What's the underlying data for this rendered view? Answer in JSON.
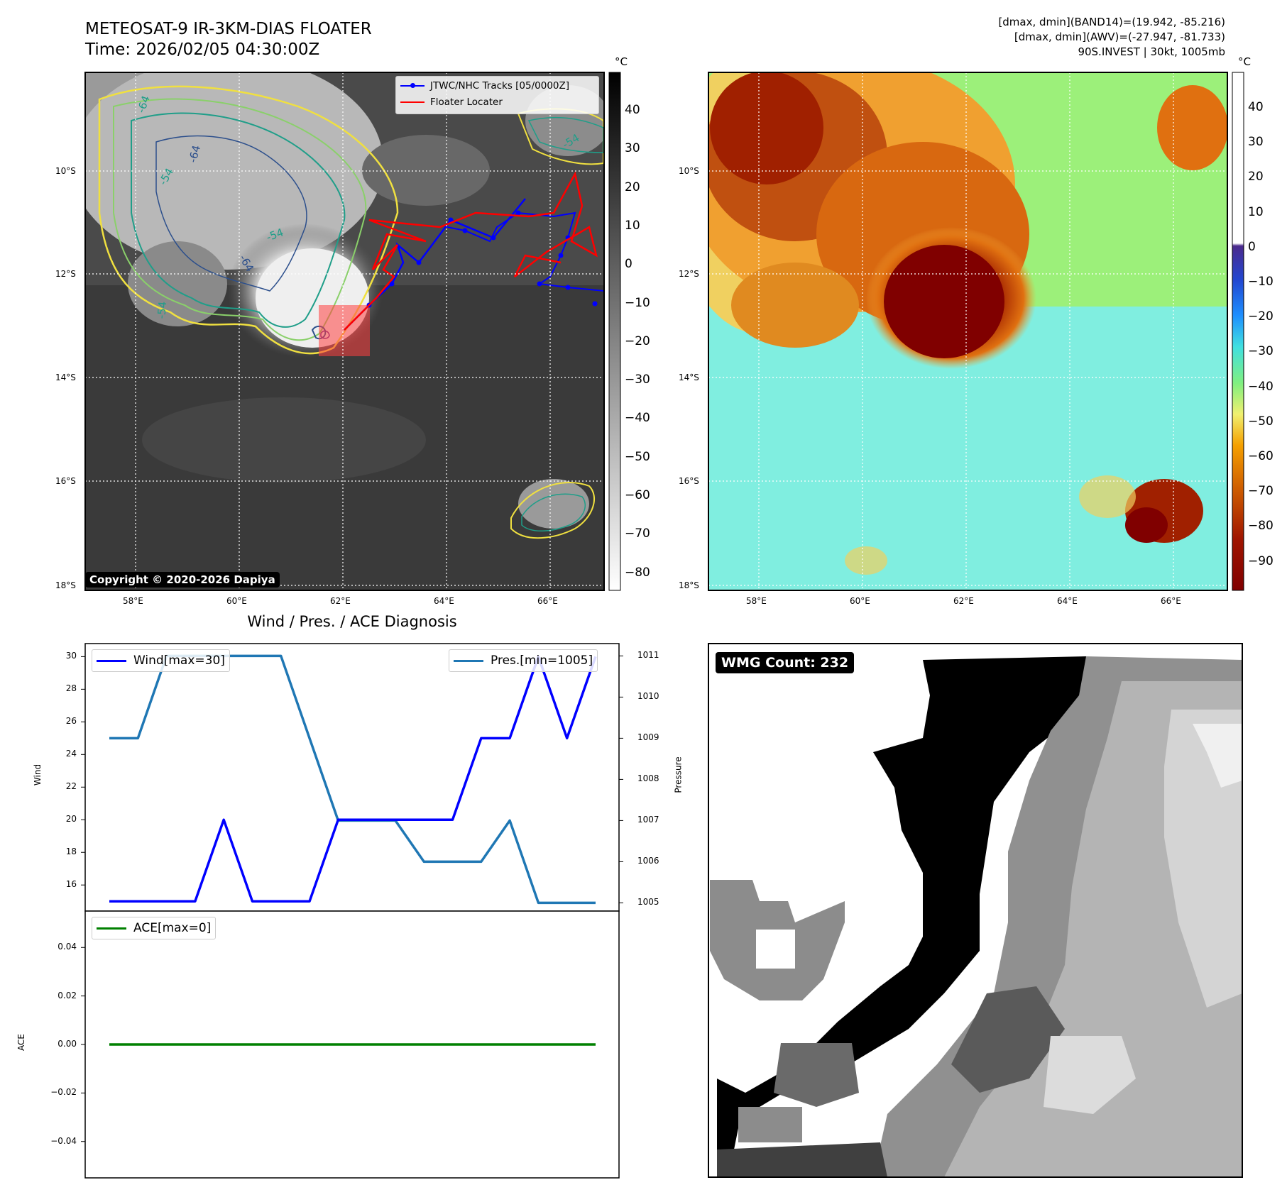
{
  "header": {
    "title_line1": "METEOSAT-9 IR-3KM-DIAS FLOATER",
    "title_line2": "Time: 2026/02/05 04:30:00Z",
    "info_line1": "[dmax, dmin](BAND14)=(19.942, -85.216)",
    "info_line2": "[dmax, dmin](AWV)=(-27.947, -81.733)",
    "info_line3": "90S.INVEST | 30kt, 1005mb"
  },
  "ir_panel": {
    "unit": "°C",
    "colorbar_ticks": [
      "40",
      "30",
      "20",
      "10",
      "0",
      "−10",
      "−20",
      "−30",
      "−40",
      "−50",
      "−60",
      "−70",
      "−80"
    ],
    "lat_labels": [
      "10°S",
      "12°S",
      "14°S",
      "16°S",
      "18°S"
    ],
    "lon_labels": [
      "58°E",
      "60°E",
      "62°E",
      "64°E",
      "66°E"
    ],
    "legend": {
      "tracks": "JTWC/NHC Tracks [05/0000Z]",
      "locater": "Floater Locater"
    },
    "contour_labels": [
      "-64",
      "-54",
      "-64",
      "-54",
      "-54",
      "-64",
      "-54"
    ],
    "copyright": "Copyright © 2020-2026 Dapiya",
    "colors": {
      "track": "#0000ff",
      "locater": "#ff0000",
      "contour_54": "#1f9e89",
      "contour_64": "#2c4f8c",
      "contour_yellow": "#f0e040"
    }
  },
  "awv_panel": {
    "unit": "°C",
    "colorbar_ticks": [
      "40",
      "30",
      "20",
      "10",
      "0",
      "−10",
      "−20",
      "−30",
      "−40",
      "−50",
      "−60",
      "−70",
      "−80",
      "−90"
    ],
    "lat_labels": [
      "10°S",
      "12°S",
      "14°S",
      "16°S",
      "18°S"
    ],
    "lon_labels": [
      "58°E",
      "60°E",
      "62°E",
      "64°E",
      "66°E"
    ]
  },
  "wmg_panel": {
    "label": "WMG Count: 232"
  },
  "chart_data": [
    {
      "type": "line",
      "title": "Wind / Pres. / ACE Diagnosis",
      "ylabel": "Wind",
      "y2label": "Pressure",
      "x": [
        0,
        1,
        2,
        3,
        4,
        5,
        6,
        7,
        8,
        9,
        10,
        11,
        12,
        13,
        14,
        15,
        16,
        17
      ],
      "ylim": [
        14.4,
        30.8
      ],
      "y2lim": [
        1004.8,
        1011.3
      ],
      "y_ticks": [
        "16",
        "18",
        "20",
        "22",
        "24",
        "26",
        "28",
        "30"
      ],
      "y2_ticks": [
        "1005",
        "1006",
        "1007",
        "1008",
        "1009",
        "1010",
        "1011"
      ],
      "series": [
        {
          "name": "Wind[max=30]",
          "axis": "left",
          "color": "#0000ff",
          "values": [
            15,
            15,
            15,
            15,
            20,
            15,
            15,
            15,
            20,
            20,
            20,
            20,
            20,
            25,
            25,
            30,
            25,
            30
          ]
        },
        {
          "name": "Pres.[min=1005]",
          "axis": "right",
          "color": "#1f77b4",
          "values": [
            1009,
            1009,
            1011,
            1011,
            1011,
            1011,
            1011,
            1009,
            1007,
            1007,
            1007,
            1006,
            1006,
            1006,
            1007,
            1005,
            1005,
            1005
          ]
        }
      ]
    },
    {
      "type": "line",
      "ylabel": "ACE",
      "x": [
        0,
        17
      ],
      "ylim": [
        -0.055,
        0.055
      ],
      "y_ticks": [
        "0.04",
        "0.02",
        "0.00",
        "−0.02",
        "−0.04"
      ],
      "series": [
        {
          "name": "ACE[max=0]",
          "color": "#008000",
          "values": [
            0,
            0
          ]
        }
      ]
    }
  ]
}
